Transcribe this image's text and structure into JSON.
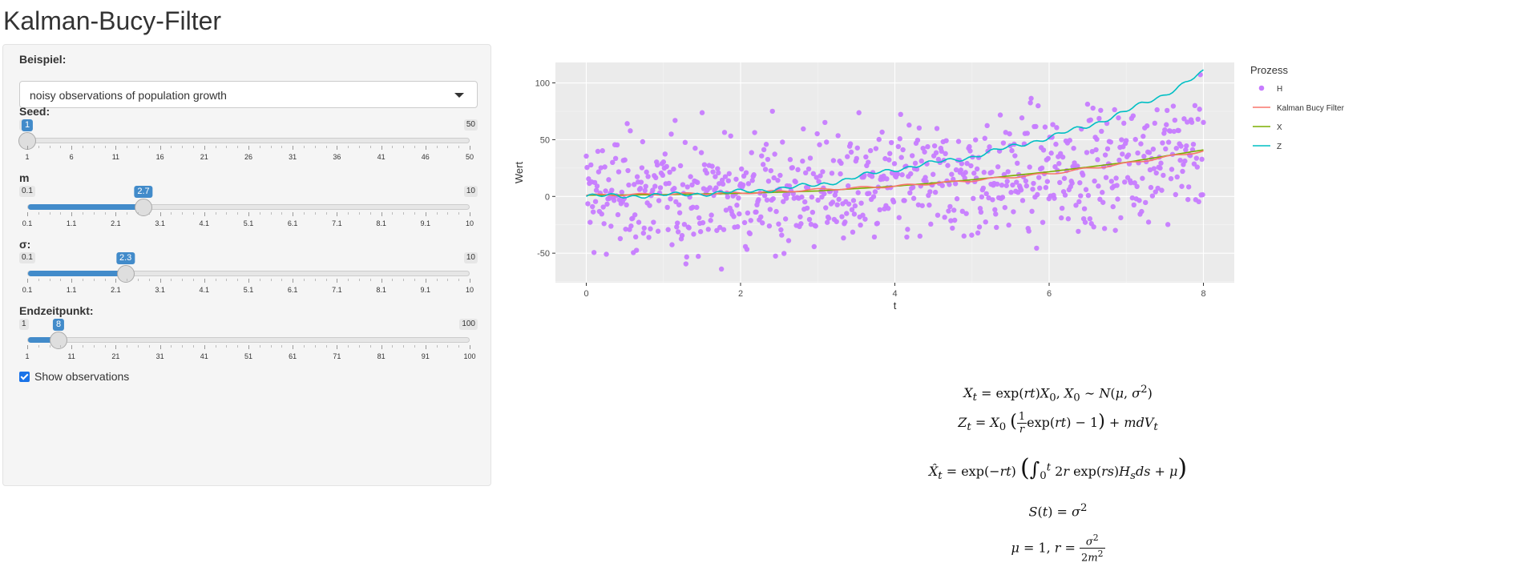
{
  "app": {
    "title": "Kalman-Bucy-Filter"
  },
  "sidebar": {
    "example": {
      "label": "Beispiel:",
      "value": "noisy observations of population growth"
    },
    "seed": {
      "label": "Seed:",
      "min": 1,
      "max": 50,
      "value": 1,
      "ticks": [
        "1",
        "6",
        "11",
        "16",
        "21",
        "26",
        "31",
        "36",
        "41",
        "46",
        "50"
      ]
    },
    "m": {
      "label": "m",
      "min": 0.1,
      "max": 10,
      "value": 2.7,
      "ticks": [
        "0.1",
        "1.1",
        "2.1",
        "3.1",
        "4.1",
        "5.1",
        "6.1",
        "7.1",
        "8.1",
        "9.1",
        "10"
      ]
    },
    "sigma": {
      "label": "σ:",
      "min": 0.1,
      "max": 10,
      "value": 2.3,
      "ticks": [
        "0.1",
        "1.1",
        "2.1",
        "3.1",
        "4.1",
        "5.1",
        "6.1",
        "7.1",
        "8.1",
        "9.1",
        "10"
      ]
    },
    "endtime": {
      "label": "Endzeitpunkt:",
      "min": 1,
      "max": 100,
      "value": 8,
      "ticks": [
        "1",
        "11",
        "21",
        "31",
        "41",
        "51",
        "61",
        "71",
        "81",
        "91",
        "100"
      ]
    },
    "show_obs": {
      "label": "Show observations",
      "checked": true
    }
  },
  "chart_data": {
    "type": "scatter",
    "xlabel": "t",
    "ylabel": "Wert",
    "xlim": [
      -0.4,
      8.4
    ],
    "ylim": [
      -76,
      118
    ],
    "xticks": [
      0,
      2,
      4,
      6,
      8
    ],
    "yticks": [
      -50,
      0,
      50,
      100
    ],
    "grid": true,
    "legend": {
      "title": "Prozess",
      "placement": "right"
    },
    "series": [
      {
        "name": "H",
        "kind": "points",
        "color": "#c77cff",
        "n_points": 800,
        "trend": "X + noise, sd ≈ 27"
      },
      {
        "name": "Kalman Bucy Filter",
        "kind": "line",
        "color": "#f8766d",
        "x": [
          0,
          1,
          2,
          3,
          4,
          5,
          6,
          7,
          8
        ],
        "y": [
          1,
          2,
          3,
          6,
          9,
          14,
          20,
          29,
          40
        ]
      },
      {
        "name": "X",
        "kind": "line",
        "color": "#7cae00",
        "x": [
          0,
          1,
          2,
          3,
          4,
          5,
          6,
          7,
          8
        ],
        "y": [
          1,
          1.6,
          2.7,
          4.8,
          9,
          14.7,
          21.7,
          30,
          41
        ]
      },
      {
        "name": "Z",
        "kind": "line",
        "color": "#00bfc4",
        "x": [
          0,
          1,
          2,
          3,
          4,
          5,
          6,
          6.5,
          7,
          7.5,
          8
        ],
        "y": [
          0,
          1,
          4,
          10,
          24,
          35,
          52,
          62,
          75,
          90,
          109
        ]
      }
    ]
  },
  "formulas": {
    "f1": "X_t = exp(rt) X_0, X_0 ~ N(μ, σ²)",
    "f2": "Z_t = X_0 ((1/r) exp(rt) − 1) + m dV_t",
    "f3": "X̂_t = exp(−rt) ( ∫₀ᵗ 2r exp(rs) H_s ds + μ )",
    "f4": "S(t) = σ²",
    "f5": "μ = 1, r = σ²/(2m²)"
  }
}
